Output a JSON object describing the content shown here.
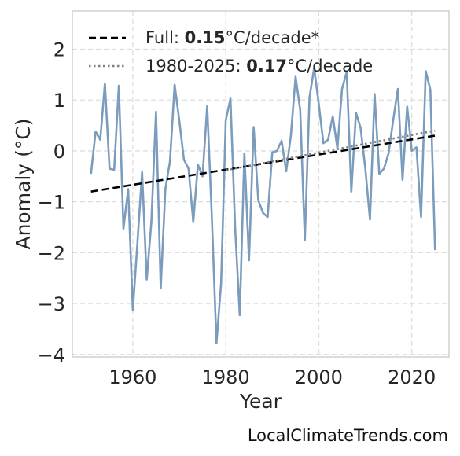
{
  "chart_data": {
    "type": "line",
    "xlabel": "Year",
    "ylabel": "Anomaly (°C)",
    "xlim": [
      1947,
      2028
    ],
    "ylim": [
      -4.05,
      2.75
    ],
    "x_ticks": [
      1960,
      1980,
      2000,
      2020
    ],
    "x_tick_labels": [
      "1960",
      "1980",
      "2000",
      "2020"
    ],
    "y_ticks": [
      -4,
      -3,
      -2,
      -1,
      0,
      1,
      2
    ],
    "y_tick_labels": [
      "−4",
      "−3",
      "−2",
      "−1",
      "0",
      "1",
      "2"
    ],
    "grid": true,
    "legend_placement": "top-left",
    "series": [
      {
        "kind": "data",
        "color": "#7b9cbd",
        "x": [
          1951,
          1952,
          1953,
          1954,
          1955,
          1956,
          1957,
          1958,
          1959,
          1960,
          1961,
          1962,
          1963,
          1964,
          1965,
          1966,
          1967,
          1968,
          1969,
          1970,
          1971,
          1972,
          1973,
          1974,
          1975,
          1976,
          1977,
          1978,
          1979,
          1980,
          1981,
          1982,
          1983,
          1984,
          1985,
          1986,
          1987,
          1988,
          1989,
          1990,
          1991,
          1992,
          1993,
          1994,
          1995,
          1996,
          1997,
          1998,
          1999,
          2000,
          2001,
          2002,
          2003,
          2004,
          2005,
          2006,
          2007,
          2008,
          2009,
          2010,
          2011,
          2012,
          2013,
          2014,
          2015,
          2016,
          2017,
          2018,
          2019,
          2020,
          2021,
          2022,
          2023,
          2024,
          2025
        ],
        "y": [
          -0.45,
          0.38,
          0.22,
          1.32,
          -0.35,
          -0.37,
          1.28,
          -1.53,
          -0.75,
          -3.13,
          -1.8,
          -0.42,
          -2.53,
          -1.4,
          0.77,
          -2.7,
          -0.75,
          -0.2,
          1.3,
          0.6,
          -0.17,
          -0.35,
          -1.4,
          -0.27,
          -0.5,
          0.88,
          -1.3,
          -3.78,
          -2.6,
          0.6,
          1.03,
          -1.5,
          -3.23,
          -0.05,
          -2.15,
          0.47,
          -0.97,
          -1.22,
          -1.3,
          -0.03,
          0.0,
          0.2,
          -0.4,
          0.3,
          1.46,
          0.8,
          -1.75,
          1.05,
          1.63,
          0.92,
          0.15,
          0.22,
          0.68,
          0.05,
          1.22,
          1.55,
          -0.8,
          0.75,
          0.45,
          -0.35,
          -1.35,
          1.12,
          -0.45,
          -0.35,
          -0.05,
          0.6,
          1.22,
          -0.57,
          0.87,
          0.0,
          0.07,
          -1.3,
          1.57,
          1.2,
          -1.95
        ]
      },
      {
        "kind": "trend",
        "color": "#000000",
        "dash": "dashed",
        "label_prefix": "Full: ",
        "label_value": "0.15",
        "label_suffix": "°C/decade*",
        "x": [
          1951,
          2025
        ],
        "y": [
          -0.8,
          0.3
        ]
      },
      {
        "kind": "trend",
        "color": "#808080",
        "dash": "dotted",
        "label_prefix": "1980-2025: ",
        "label_value": "0.17",
        "label_suffix": "°C/decade",
        "x": [
          1980,
          2025
        ],
        "y": [
          -0.38,
          0.4
        ]
      }
    ]
  },
  "watermark": "LocalClimateTrends.com"
}
